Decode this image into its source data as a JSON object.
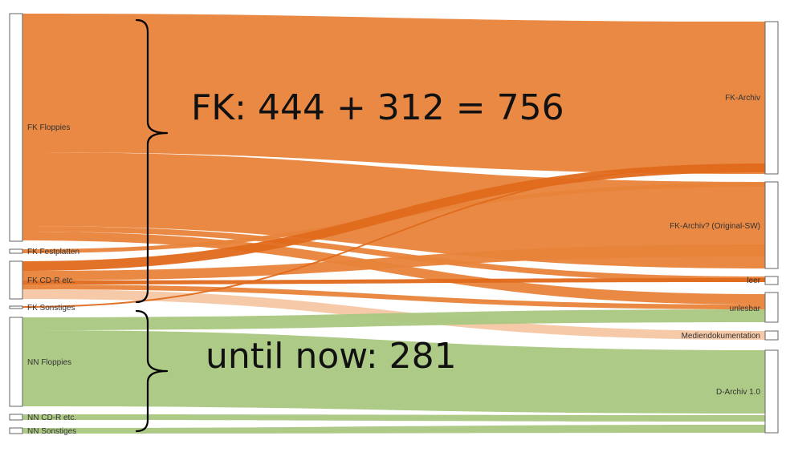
{
  "colors": {
    "fk": "#e8833a",
    "fk_dark": "#e06a1c",
    "fk_light": "#f6c7a3",
    "nn": "#a9c77f"
  },
  "annotations": {
    "fk_total": "FK: 444 + 312 = 756",
    "nn_total": "until now: 281"
  },
  "nodes": {
    "sources": [
      {
        "id": "fk_floppies",
        "label": "FK Floppies"
      },
      {
        "id": "fk_festplatten",
        "label": "FK Festplatten"
      },
      {
        "id": "fk_cdr",
        "label": "FK CD-R etc."
      },
      {
        "id": "fk_sonstiges",
        "label": "FK Sonstiges"
      },
      {
        "id": "nn_floppies",
        "label": "NN Floppies"
      },
      {
        "id": "nn_cdr",
        "label": "NN CD-R etc."
      },
      {
        "id": "nn_sonstiges",
        "label": "NN Sonstiges"
      }
    ],
    "targets": [
      {
        "id": "fk_archiv",
        "label": "FK-Archiv"
      },
      {
        "id": "fk_archiv_orig",
        "label": "FK-Archiv? (Original-SW)"
      },
      {
        "id": "leer",
        "label": "leer"
      },
      {
        "id": "unlesbar",
        "label": "unlesbar"
      },
      {
        "id": "mediendok",
        "label": "Mediendokumentation"
      },
      {
        "id": "d_archiv",
        "label": "D-Archiv 1.0"
      }
    ]
  }
}
